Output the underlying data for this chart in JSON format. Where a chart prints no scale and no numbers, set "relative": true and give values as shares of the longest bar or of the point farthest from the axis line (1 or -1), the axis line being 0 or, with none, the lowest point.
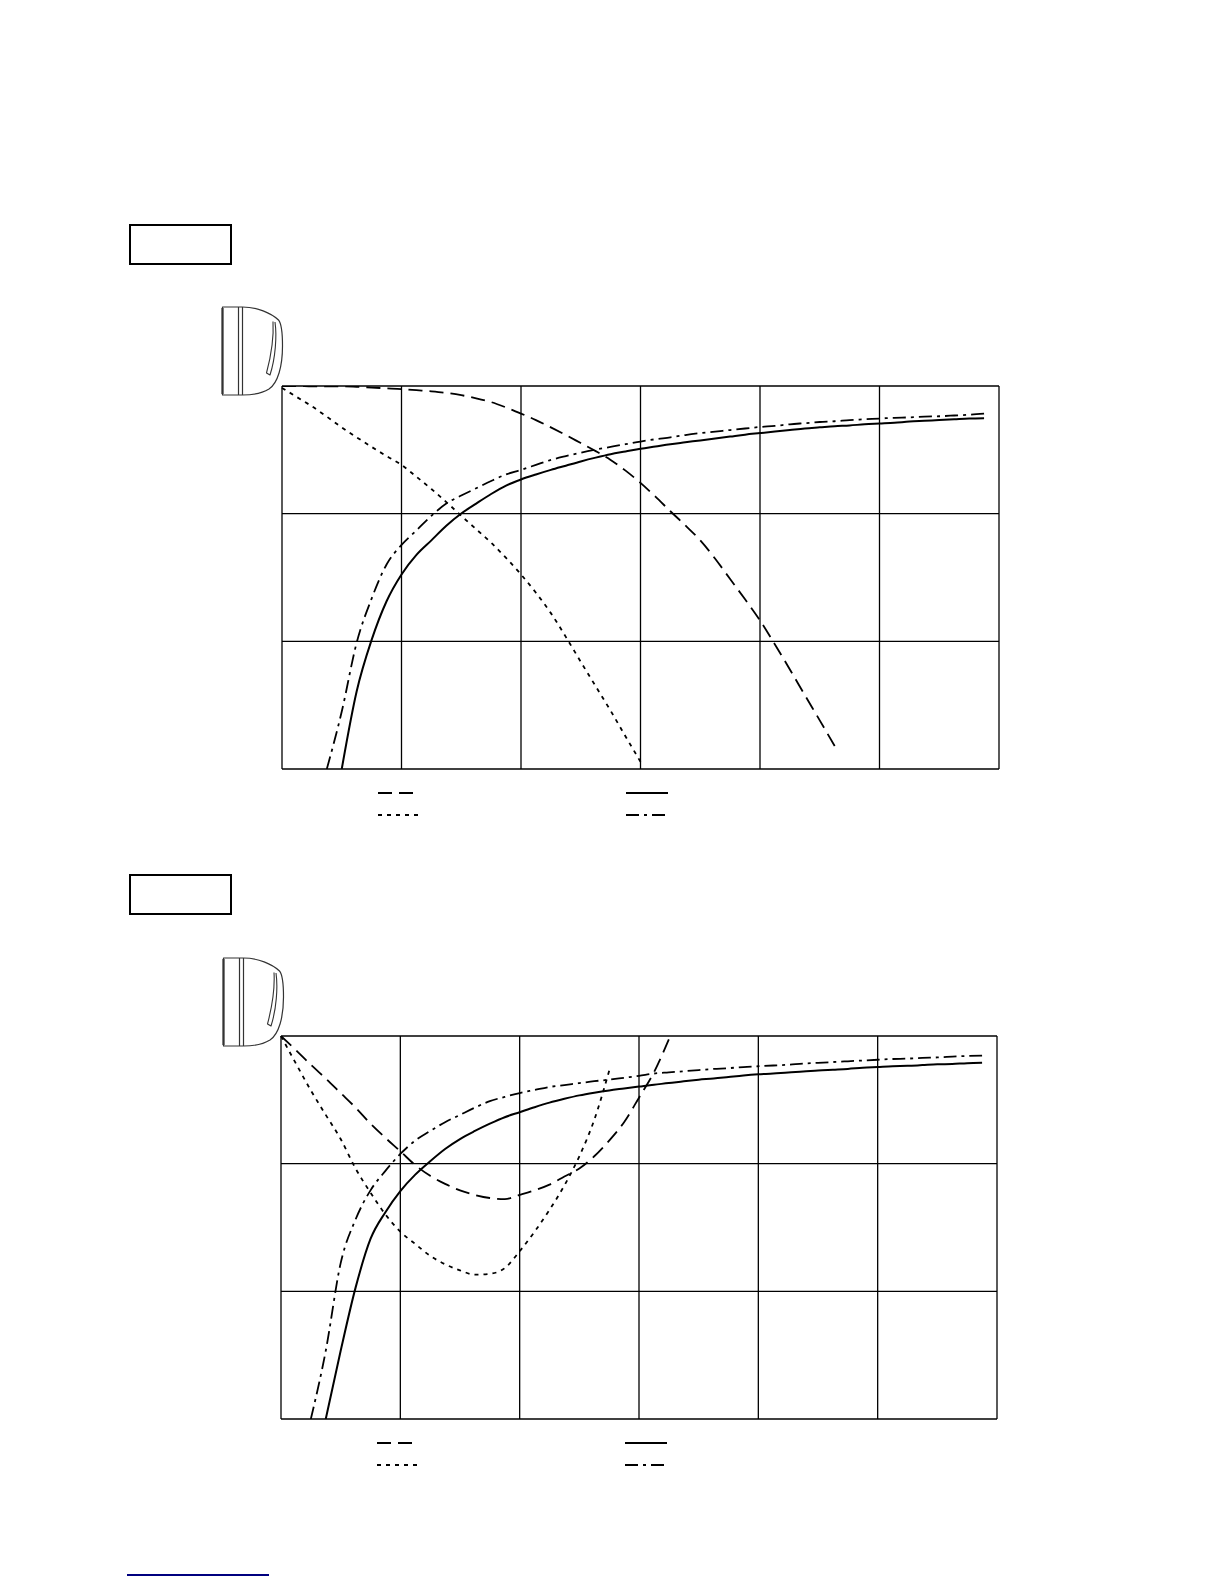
{
  "chart_data": [
    {
      "type": "line",
      "relative": true,
      "grid": true,
      "tick_labels": false,
      "categories": [
        null,
        null,
        null,
        null,
        null,
        null,
        null,
        null,
        null,
        null,
        null,
        null,
        null,
        null,
        null,
        null,
        null,
        null,
        null,
        null,
        null,
        null,
        null,
        null,
        null,
        null,
        null,
        null,
        null,
        null,
        null,
        null,
        null,
        null,
        null,
        null,
        null,
        null,
        null,
        null,
        null,
        null,
        null,
        null,
        null,
        null,
        null,
        null,
        null
      ],
      "series": [
        {
          "color": "#000000",
          "line_style": "dashed",
          "values": [
            1,
            1,
            0.999,
            0.999,
            0.999,
            0.998,
            0.996,
            0.994,
            0.992,
            0.989,
            0.986,
            0.982,
            0.976,
            0.968,
            0.958,
            0.944,
            0.928,
            0.911,
            0.892,
            0.872,
            0.851,
            0.83,
            0.807,
            0.779,
            0.747,
            0.711,
            0.673,
            0.636,
            0.597,
            0.549,
            0.496,
            0.443,
            0.388,
            0.325,
            0.26,
            0.193,
            0.127,
            0.06,
            null,
            null,
            null,
            null,
            null,
            null,
            null,
            null,
            null,
            null,
            null
          ]
        },
        {
          "color": "#000000",
          "line_style": "dotted",
          "values": [
            0.995,
            0.971,
            0.947,
            0.92,
            0.892,
            0.866,
            0.841,
            0.817,
            0.794,
            0.763,
            0.731,
            0.697,
            0.661,
            0.626,
            0.591,
            0.551,
            0.508,
            0.46,
            0.407,
            0.345,
            0.28,
            0.216,
            0.152,
            0.085,
            0.019,
            null,
            null,
            null,
            null,
            null,
            null,
            null,
            null,
            null,
            null,
            null,
            null,
            null,
            null,
            null,
            null,
            null,
            null,
            null,
            null,
            null,
            null,
            null,
            null
          ]
        },
        {
          "color": "#000000",
          "line_style": "solid",
          "values": [
            null,
            null,
            null,
            null,
            0,
            0.203,
            0.337,
            0.438,
            0.508,
            0.559,
            0.597,
            0.635,
            0.667,
            0.693,
            0.718,
            0.74,
            0.756,
            0.769,
            0.781,
            0.792,
            0.803,
            0.813,
            0.822,
            0.829,
            0.836,
            0.842,
            0.848,
            0.853,
            0.858,
            0.863,
            0.868,
            0.873,
            0.877,
            0.881,
            0.885,
            0.889,
            0.892,
            0.895,
            0.897,
            0.9,
            0.902,
            0.904,
            0.907,
            0.909,
            0.911,
            0.913,
            0.915,
            0.916,
            null
          ]
        },
        {
          "color": "#000000",
          "line_style": "dashdot",
          "values": [
            null,
            null,
            null,
            0,
            0.15,
            0.33,
            0.445,
            0.534,
            0.585,
            0.623,
            0.661,
            0.693,
            0.714,
            0.733,
            0.752,
            0.769,
            0.781,
            0.794,
            0.807,
            0.817,
            0.826,
            0.834,
            0.841,
            0.848,
            0.855,
            0.861,
            0.866,
            0.872,
            0.877,
            0.881,
            0.885,
            0.889,
            0.893,
            0.896,
            0.9,
            0.903,
            0.906,
            0.908,
            0.911,
            0.913,
            0.915,
            0.917,
            0.918,
            0.92,
            0.921,
            0.923,
            0.925,
            0.928,
            null
          ]
        }
      ]
    },
    {
      "type": "line",
      "relative": true,
      "grid": true,
      "tick_labels": false,
      "categories": [
        null,
        null,
        null,
        null,
        null,
        null,
        null,
        null,
        null,
        null,
        null,
        null,
        null,
        null,
        null,
        null,
        null,
        null,
        null,
        null,
        null,
        null,
        null,
        null,
        null,
        null,
        null,
        null,
        null,
        null,
        null,
        null,
        null,
        null,
        null,
        null,
        null,
        null,
        null,
        null,
        null,
        null,
        null,
        null,
        null,
        null,
        null,
        null,
        null
      ],
      "series": [
        {
          "color": "#000000",
          "line_style": "dashed",
          "values": [
            1,
            0.963,
            0.925,
            0.889,
            0.851,
            0.813,
            0.771,
            0.734,
            0.699,
            0.663,
            0.635,
            0.614,
            0.597,
            0.585,
            0.577,
            0.574,
            0.585,
            0.597,
            0.612,
            0.633,
            0.654,
            0.686,
            0.727,
            0.775,
            0.839,
            0.905,
            0.991,
            null,
            null,
            null,
            null,
            null,
            null,
            null,
            null,
            null,
            null,
            null,
            null,
            null,
            null,
            null,
            null,
            null,
            null,
            null,
            null,
            null,
            null
          ]
        },
        {
          "color": "#000000",
          "line_style": "dotted",
          "values": [
            1,
            0.928,
            0.858,
            0.794,
            0.731,
            0.654,
            0.591,
            0.534,
            0.489,
            0.457,
            0.426,
            0.404,
            0.388,
            0.377,
            0.379,
            0.394,
            0.438,
            0.489,
            0.546,
            0.61,
            0.686,
            0.781,
            0.909,
            null,
            null,
            null,
            null,
            null,
            null,
            null,
            null,
            null,
            null,
            null,
            null,
            null,
            null,
            null,
            null,
            null,
            null,
            null,
            null,
            null,
            null,
            null,
            null,
            null,
            null
          ]
        },
        {
          "color": "#000000",
          "line_style": "solid",
          "values": [
            null,
            null,
            null,
            0,
            0.178,
            0.343,
            0.47,
            0.54,
            0.595,
            0.638,
            0.673,
            0.705,
            0.731,
            0.752,
            0.771,
            0.788,
            0.801,
            0.814,
            0.826,
            0.836,
            0.845,
            0.852,
            0.858,
            0.863,
            0.868,
            0.873,
            0.877,
            0.882,
            0.886,
            0.889,
            0.893,
            0.897,
            0.9,
            0.902,
            0.905,
            0.907,
            0.91,
            0.912,
            0.914,
            0.917,
            0.919,
            0.921,
            0.922,
            0.924,
            0.926,
            0.927,
            0.929,
            0.93,
            null
          ]
        },
        {
          "color": "#000000",
          "line_style": "dashdot",
          "values": [
            null,
            null,
            0,
            0.178,
            0.407,
            0.521,
            0.597,
            0.648,
            0.692,
            0.727,
            0.752,
            0.775,
            0.794,
            0.813,
            0.83,
            0.841,
            0.851,
            0.859,
            0.867,
            0.872,
            0.877,
            0.882,
            0.886,
            0.891,
            0.896,
            0.902,
            0.905,
            0.908,
            0.911,
            0.914,
            0.916,
            0.919,
            0.921,
            0.923,
            0.925,
            0.928,
            0.93,
            0.932,
            0.934,
            0.936,
            0.938,
            0.94,
            0.941,
            0.943,
            0.944,
            0.946,
            0.948,
            0.949,
            null
          ]
        }
      ]
    }
  ]
}
